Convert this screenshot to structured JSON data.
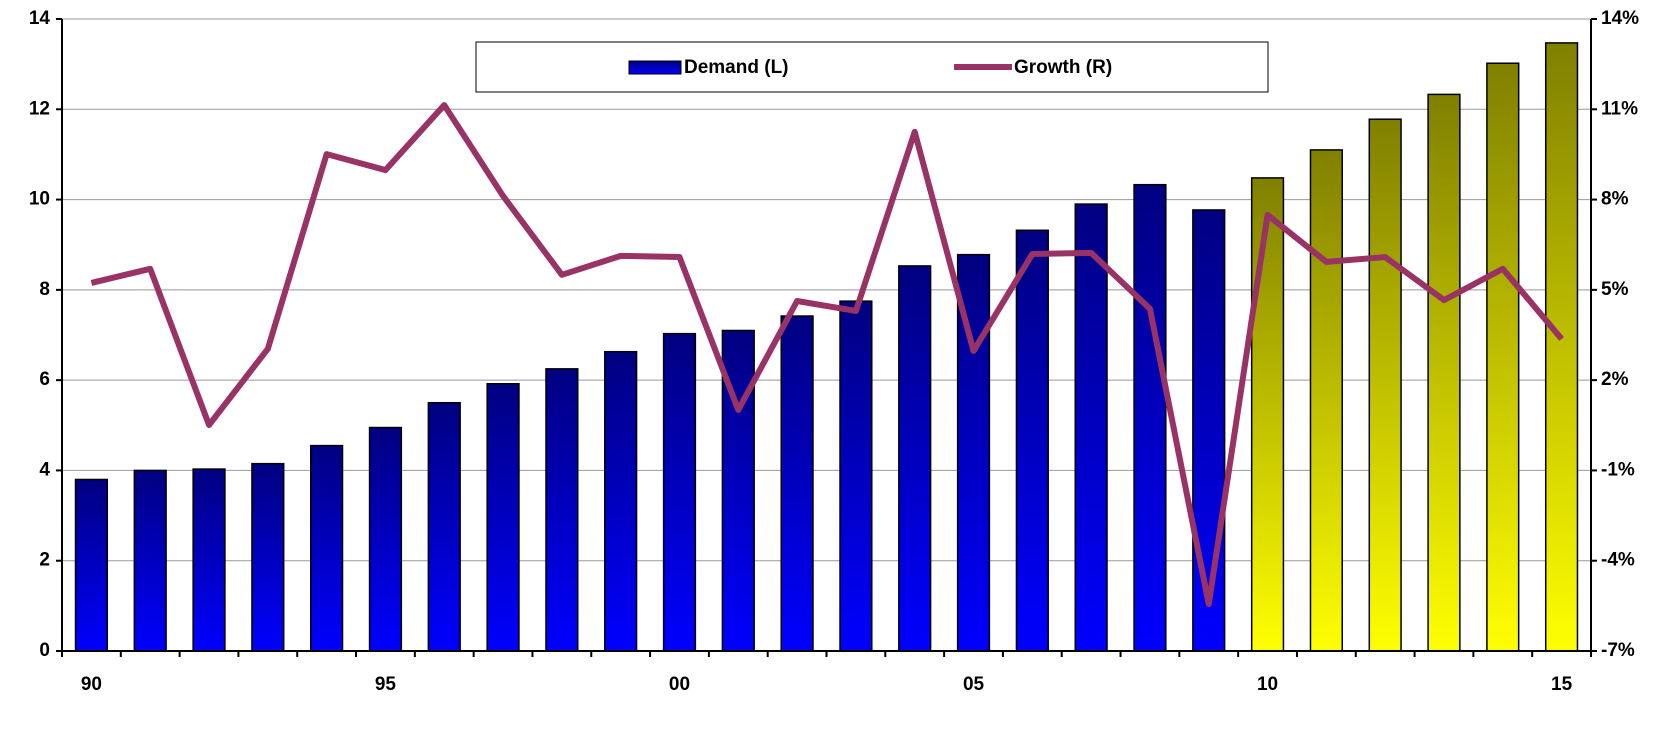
{
  "chart_data": {
    "type": "bar-line",
    "categories": [
      "90",
      null,
      null,
      null,
      null,
      "95",
      null,
      null,
      null,
      null,
      "00",
      null,
      null,
      null,
      null,
      "05",
      null,
      null,
      null,
      null,
      "10",
      null,
      null,
      null,
      null,
      "15"
    ],
    "series": [
      {
        "name": "Demand (L)",
        "type": "bar",
        "color": "#0000ff",
        "colors": [
          "#0000ff",
          "#0000ff",
          "#0000ff",
          "#0000ff",
          "#0000ff",
          "#0000ff",
          "#0000ff",
          "#0000ff",
          "#0000ff",
          "#0000ff",
          "#0000ff",
          "#0000ff",
          "#0000ff",
          "#0000ff",
          "#0000ff",
          "#0000ff",
          "#0000ff",
          "#0000ff",
          "#0000ff",
          "#0000ff",
          "#ffff00",
          "#ffff00",
          "#ffff00",
          "#ffff00",
          "#ffff00",
          "#ffff00"
        ],
        "values": [
          3.8,
          4.0,
          4.03,
          4.15,
          4.55,
          4.95,
          5.5,
          5.92,
          6.25,
          6.63,
          7.03,
          7.1,
          7.42,
          7.75,
          8.53,
          8.78,
          9.32,
          9.9,
          10.33,
          9.77,
          10.48,
          11.1,
          11.78,
          12.33,
          13.02,
          13.47
        ]
      },
      {
        "name": "Growth (R)",
        "type": "line",
        "axis": "y2",
        "color": "#993366",
        "values": [
          5.23,
          5.7,
          0.51,
          3.04,
          9.51,
          8.98,
          11.14,
          8.12,
          5.5,
          6.13,
          6.09,
          1.01,
          4.63,
          4.3,
          10.25,
          2.97,
          6.19,
          6.23,
          4.37,
          -5.44,
          7.49,
          5.93,
          6.09,
          4.66,
          5.7,
          3.37
        ]
      }
    ],
    "ylim": [
      0,
      14
    ],
    "yticks": [
      0,
      2,
      4,
      6,
      8,
      10,
      12,
      14
    ],
    "y2lim": [
      -7,
      14
    ],
    "y2ticks": [
      {
        "value": -7,
        "label": "-7%"
      },
      {
        "value": -4,
        "label": "-4%"
      },
      {
        "value": -1,
        "label": "-1%"
      },
      {
        "value": 2,
        "label": "2%"
      },
      {
        "value": 5,
        "label": "5%"
      },
      {
        "value": 8,
        "label": "8%"
      },
      {
        "value": 11,
        "label": "11%"
      },
      {
        "value": 14,
        "label": "14%"
      }
    ],
    "grid": true,
    "legend": "top"
  }
}
